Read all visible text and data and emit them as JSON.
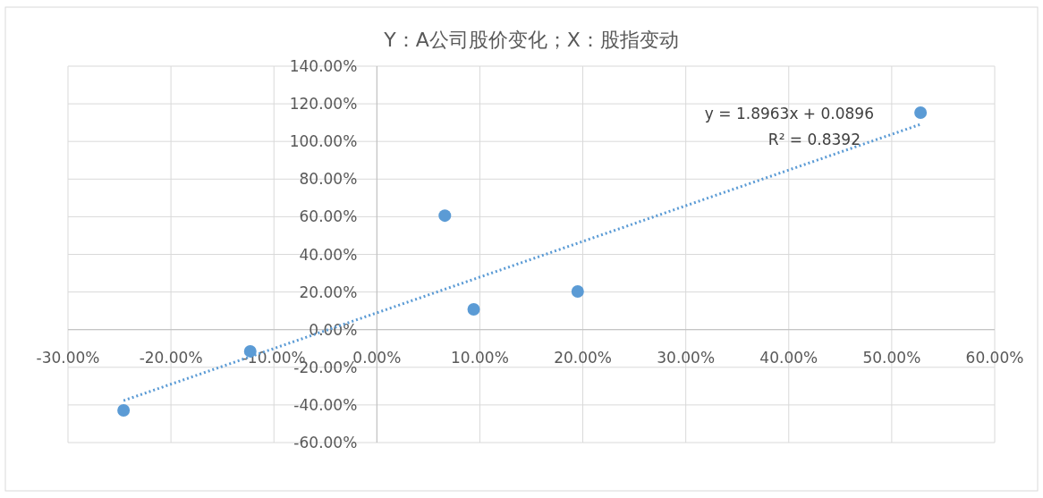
{
  "chart_data": {
    "type": "scatter",
    "title": "Y：A公司股价变化；X：股指变动",
    "xlim": [
      -30,
      60
    ],
    "xticks": [
      {
        "value": -30,
        "label": "-30.00%"
      },
      {
        "value": -20,
        "label": "-20.00%"
      },
      {
        "value": -10,
        "label": "-10.00%"
      },
      {
        "value": 0,
        "label": "0.00%"
      },
      {
        "value": 10,
        "label": "10.00%"
      },
      {
        "value": 20,
        "label": "20.00%"
      },
      {
        "value": 30,
        "label": "30.00%"
      },
      {
        "value": 40,
        "label": "40.00%"
      },
      {
        "value": 50,
        "label": "50.00%"
      },
      {
        "value": 60,
        "label": "60.00%"
      }
    ],
    "ylim": [
      -60,
      140
    ],
    "yticks": [
      {
        "value": -60,
        "label": "-60.00%"
      },
      {
        "value": -40,
        "label": "-40.00%"
      },
      {
        "value": -20,
        "label": "-20.00%"
      },
      {
        "value": 0,
        "label": "0.00%"
      },
      {
        "value": 20,
        "label": "20.00%"
      },
      {
        "value": 40,
        "label": "40.00%"
      },
      {
        "value": 60,
        "label": "60.00%"
      },
      {
        "value": 80,
        "label": "80.00%"
      },
      {
        "value": 100,
        "label": "100.00%"
      },
      {
        "value": 120,
        "label": "120.00%"
      },
      {
        "value": 140,
        "label": "140.00%"
      }
    ],
    "grid": true,
    "marker": "circle",
    "series": [
      {
        "color": "#5b9bd5",
        "x": [
          -24.6,
          -12.3,
          6.6,
          9.4,
          19.5,
          52.8
        ],
        "values": [
          -42.9,
          -11.5,
          60.6,
          10.8,
          20.3,
          115.3
        ]
      },
      {
        "type": "line",
        "color": "#5b9bd5",
        "line_style": "dotted",
        "marker": "none",
        "x": [
          -24.6,
          52.8
        ],
        "values": [
          -37.7,
          109.1
        ]
      }
    ],
    "annotations": [
      "y = 1.8963x + 0.0896",
      "R² = 0.8392"
    ]
  }
}
